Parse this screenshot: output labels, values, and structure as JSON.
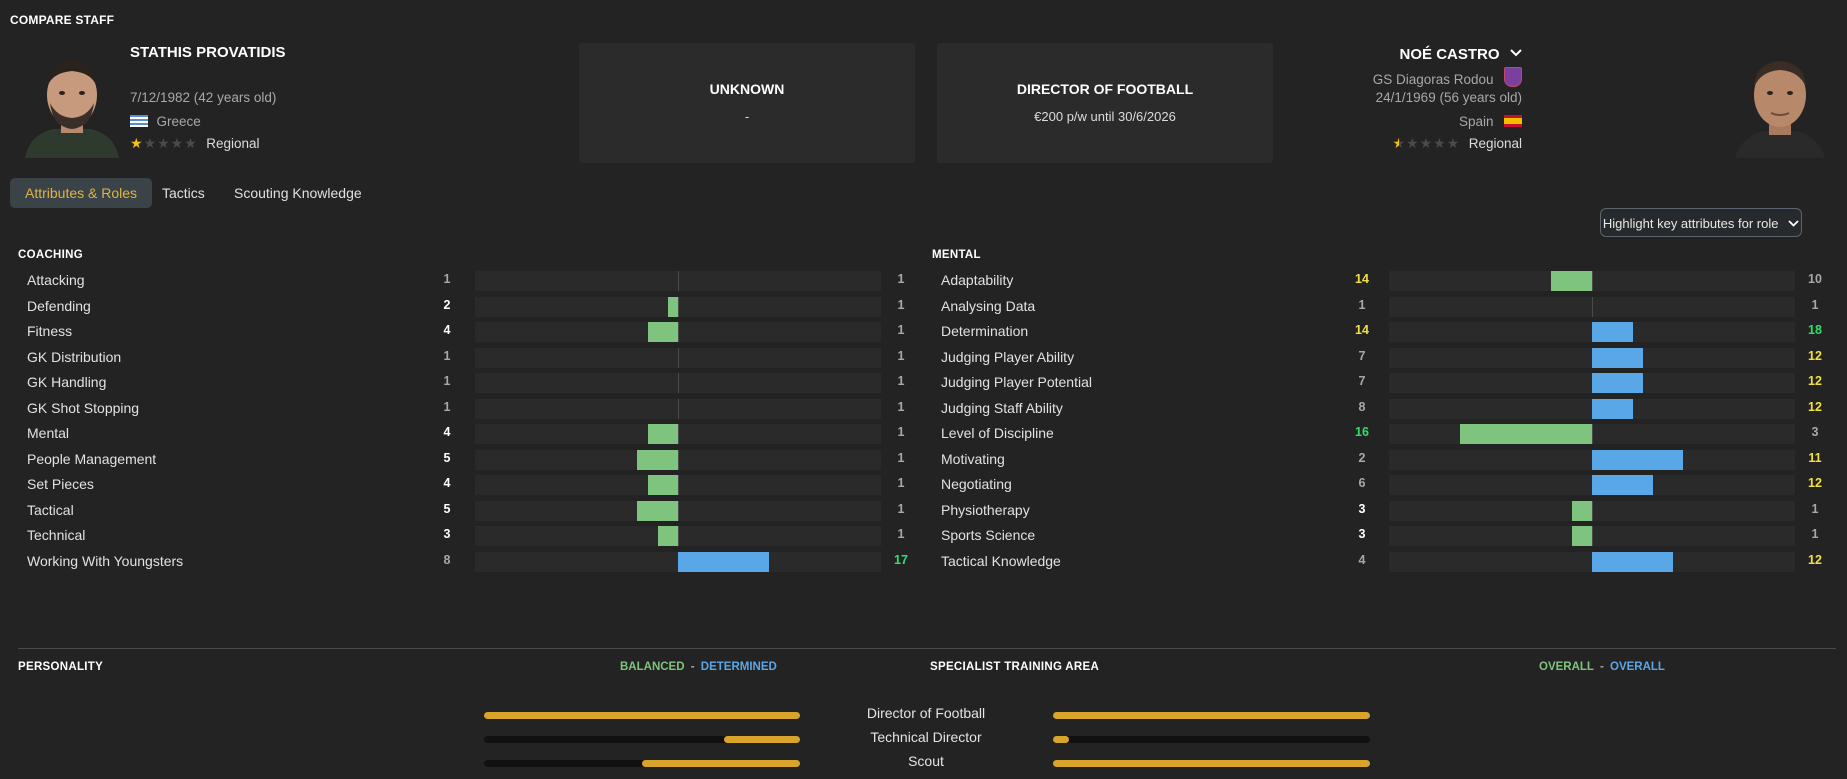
{
  "page_title": "COMPARE STAFF",
  "left_staff": {
    "name": "STATHIS PROVATIDIS",
    "dob": "7/12/1982 (42 years old)",
    "nation": "Greece",
    "reputation": "Regional",
    "stars_filled": 1,
    "stars_total": 5
  },
  "right_staff": {
    "name": "NOÉ CASTRO",
    "club": "GS Diagoras Rodou",
    "dob": "24/1/1969 (56 years old)",
    "nation": "Spain",
    "reputation": "Regional",
    "stars_filled": 0.5,
    "stars_total": 5
  },
  "cards": [
    {
      "title": "UNKNOWN",
      "sub": "-"
    },
    {
      "title": "DIRECTOR OF FOOTBALL",
      "sub": "€200 p/w until 30/6/2026"
    }
  ],
  "tabs": [
    "Attributes & Roles",
    "Tactics",
    "Scouting Knowledge"
  ],
  "highlight_button": "Highlight key attributes for role",
  "coaching": {
    "heading": "COACHING",
    "rows": [
      {
        "name": "Attacking",
        "left": 1,
        "right": 1
      },
      {
        "name": "Defending",
        "left": 2,
        "right": 1
      },
      {
        "name": "Fitness",
        "left": 4,
        "right": 1
      },
      {
        "name": "GK Distribution",
        "left": 1,
        "right": 1
      },
      {
        "name": "GK Handling",
        "left": 1,
        "right": 1
      },
      {
        "name": "GK Shot Stopping",
        "left": 1,
        "right": 1
      },
      {
        "name": "Mental",
        "left": 4,
        "right": 1
      },
      {
        "name": "People Management",
        "left": 5,
        "right": 1
      },
      {
        "name": "Set Pieces",
        "left": 4,
        "right": 1
      },
      {
        "name": "Tactical",
        "left": 5,
        "right": 1
      },
      {
        "name": "Technical",
        "left": 3,
        "right": 1
      },
      {
        "name": "Working With Youngsters",
        "left": 8,
        "right": 17
      }
    ]
  },
  "mental": {
    "heading": "MENTAL",
    "rows": [
      {
        "name": "Adaptability",
        "left": 14,
        "right": 10
      },
      {
        "name": "Analysing Data",
        "left": 1,
        "right": 1
      },
      {
        "name": "Determination",
        "left": 14,
        "right": 18
      },
      {
        "name": "Judging Player Ability",
        "left": 7,
        "right": 12
      },
      {
        "name": "Judging Player Potential",
        "left": 7,
        "right": 12
      },
      {
        "name": "Judging Staff Ability",
        "left": 8,
        "right": 12
      },
      {
        "name": "Level of Discipline",
        "left": 16,
        "right": 3
      },
      {
        "name": "Motivating",
        "left": 2,
        "right": 11
      },
      {
        "name": "Negotiating",
        "left": 6,
        "right": 12
      },
      {
        "name": "Physiotherapy",
        "left": 3,
        "right": 1
      },
      {
        "name": "Sports Science",
        "left": 3,
        "right": 1
      },
      {
        "name": "Tactical Knowledge",
        "left": 4,
        "right": 12
      }
    ]
  },
  "personality": {
    "heading": "PERSONALITY",
    "left": "BALANCED",
    "separator": "-",
    "right": "DETERMINED"
  },
  "specialist": {
    "heading": "SPECIALIST TRAINING AREA",
    "left": "OVERALL",
    "separator": "-",
    "right": "OVERALL"
  },
  "training_roles": [
    {
      "label": "Director of Football",
      "left_fill": 1.0,
      "right_fill": 1.0
    },
    {
      "label": "Technical Director",
      "left_fill": 0.24,
      "right_fill": 0.05
    },
    {
      "label": "Scout",
      "left_fill": 0.5,
      "right_fill": 1.0
    }
  ],
  "colors": {
    "green_bar": "#7fc47e",
    "blue_bar": "#5aa7e8",
    "accent_tab": "#e0b340",
    "training_fill": "#d8a52a"
  }
}
